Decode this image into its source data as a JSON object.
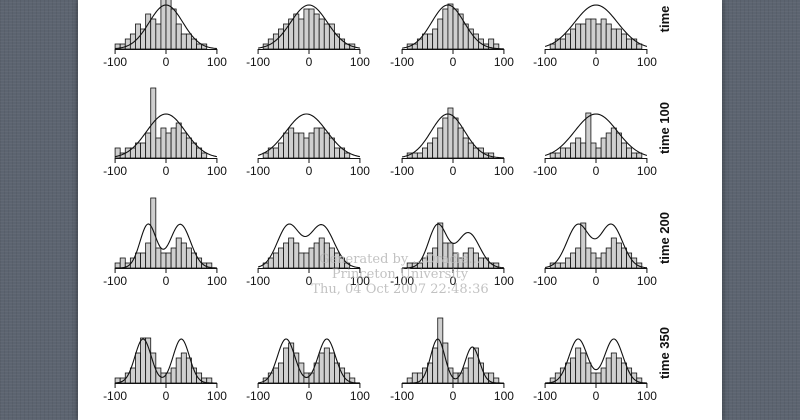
{
  "chart_data": {
    "type": "histogram-grid",
    "title": "",
    "xlabel": "",
    "ylabel": "",
    "xlim": [
      -110,
      110
    ],
    "x_ticks": [
      -100,
      0,
      100
    ],
    "x_tick_labels": [
      "-100",
      "0",
      "100"
    ],
    "bin_width": 10,
    "bin_starts": [
      -100,
      -90,
      -80,
      -70,
      -60,
      -50,
      -40,
      -30,
      -20,
      -10,
      0,
      10,
      20,
      30,
      40,
      50,
      60,
      70,
      80,
      90
    ],
    "rows": [
      {
        "label": "time",
        "panels": [
          {
            "counts": [
              1,
              1,
              2,
              3,
              5,
              4,
              7,
              6,
              5,
              13,
              11,
              8,
              5,
              3,
              3,
              2,
              1,
              1,
              0,
              0
            ],
            "curve": [
              {
                "mean": 0,
                "sd": 33,
                "weight": 1
              }
            ]
          },
          {
            "counts": [
              0,
              1,
              2,
              3,
              4,
              5,
              6,
              7,
              6,
              8,
              8,
              7,
              6,
              5,
              5,
              3,
              2,
              1,
              1,
              0
            ],
            "curve": [
              {
                "mean": 0,
                "sd": 36,
                "weight": 1
              }
            ]
          },
          {
            "counts": [
              0,
              1,
              1,
              2,
              3,
              3,
              4,
              6,
              8,
              9,
              8,
              7,
              5,
              4,
              3,
              2,
              1,
              2,
              1,
              0
            ],
            "curve": [
              {
                "mean": -10,
                "sd": 32,
                "weight": 1
              }
            ]
          },
          {
            "counts": [
              0,
              1,
              2,
              2,
              3,
              4,
              5,
              5,
              6,
              6,
              5,
              6,
              5,
              4,
              4,
              3,
              2,
              2,
              1,
              0
            ],
            "curve": [
              {
                "mean": 0,
                "sd": 42,
                "weight": 1
              }
            ]
          }
        ]
      },
      {
        "label": "time 100",
        "panels": [
          {
            "counts": [
              2,
              1,
              2,
              2,
              3,
              3,
              5,
              14,
              4,
              6,
              5,
              6,
              7,
              5,
              4,
              3,
              2,
              1,
              0,
              0
            ],
            "curve": [
              {
                "mean": 0,
                "sd": 38,
                "weight": 1
              }
            ]
          },
          {
            "counts": [
              0,
              1,
              2,
              2,
              3,
              5,
              6,
              5,
              5,
              4,
              5,
              6,
              6,
              5,
              4,
              2,
              2,
              1,
              0,
              0
            ],
            "curve": [
              {
                "mean": -5,
                "sd": 40,
                "weight": 1
              }
            ]
          },
          {
            "counts": [
              0,
              1,
              1,
              1,
              2,
              3,
              4,
              6,
              8,
              10,
              8,
              6,
              4,
              3,
              2,
              2,
              1,
              1,
              0,
              0
            ],
            "curve": [
              {
                "mean": -10,
                "sd": 33,
                "weight": 1
              }
            ]
          },
          {
            "counts": [
              0,
              1,
              1,
              2,
              2,
              3,
              4,
              3,
              9,
              3,
              2,
              4,
              5,
              6,
              5,
              3,
              2,
              1,
              1,
              0
            ],
            "curve": [
              {
                "mean": 0,
                "sd": 42,
                "weight": 1
              }
            ]
          }
        ]
      },
      {
        "label": "time 200",
        "panels": [
          {
            "counts": [
              1,
              2,
              1,
              2,
              3,
              3,
              5,
              14,
              4,
              3,
              3,
              4,
              6,
              5,
              4,
              3,
              2,
              1,
              1,
              0
            ],
            "curve": [
              {
                "mean": -35,
                "sd": 16,
                "weight": 0.5
              },
              {
                "mean": 28,
                "sd": 20,
                "weight": 0.5
              }
            ]
          },
          {
            "counts": [
              0,
              1,
              2,
              3,
              4,
              5,
              6,
              5,
              3,
              3,
              4,
              5,
              6,
              5,
              4,
              3,
              2,
              1,
              0,
              0
            ],
            "curve": [
              {
                "mean": -40,
                "sd": 22,
                "weight": 0.5
              },
              {
                "mean": 25,
                "sd": 24,
                "weight": 0.5
              }
            ]
          },
          {
            "counts": [
              0,
              1,
              1,
              1,
              2,
              3,
              4,
              9,
              5,
              5,
              3,
              2,
              3,
              4,
              3,
              2,
              2,
              1,
              1,
              0
            ],
            "curve": [
              {
                "mean": -30,
                "sd": 18,
                "weight": 0.55
              },
              {
                "mean": 30,
                "sd": 22,
                "weight": 0.45
              }
            ]
          },
          {
            "counts": [
              0,
              1,
              1,
              1,
              2,
              3,
              4,
              9,
              4,
              3,
              2,
              3,
              4,
              6,
              5,
              4,
              3,
              2,
              1,
              0
            ],
            "curve": [
              {
                "mean": -35,
                "sd": 22,
                "weight": 0.5
              },
              {
                "mean": 30,
                "sd": 22,
                "weight": 0.5
              }
            ]
          }
        ]
      },
      {
        "label": "time 350",
        "panels": [
          {
            "counts": [
              1,
              1,
              2,
              3,
              6,
              9,
              9,
              6,
              3,
              2,
              2,
              3,
              5,
              6,
              5,
              3,
              2,
              1,
              1,
              0
            ],
            "curve": [
              {
                "mean": -45,
                "sd": 16,
                "weight": 0.5
              },
              {
                "mean": 30,
                "sd": 16,
                "weight": 0.5
              }
            ]
          },
          {
            "counts": [
              0,
              1,
              2,
              3,
              4,
              7,
              8,
              6,
              4,
              2,
              2,
              4,
              6,
              7,
              6,
              4,
              3,
              2,
              1,
              0
            ],
            "curve": [
              {
                "mean": -45,
                "sd": 17,
                "weight": 0.5
              },
              {
                "mean": 35,
                "sd": 17,
                "weight": 0.5
              }
            ]
          },
          {
            "counts": [
              0,
              1,
              2,
              2,
              3,
              4,
              7,
              13,
              8,
              3,
              2,
              2,
              3,
              5,
              7,
              4,
              2,
              2,
              1,
              0
            ],
            "curve": [
              {
                "mean": -30,
                "sd": 14,
                "weight": 0.55
              },
              {
                "mean": 38,
                "sd": 14,
                "weight": 0.45
              }
            ]
          },
          {
            "counts": [
              0,
              1,
              2,
              3,
              4,
              5,
              7,
              6,
              4,
              2,
              2,
              3,
              5,
              6,
              5,
              4,
              3,
              2,
              1,
              0
            ],
            "curve": [
              {
                "mean": -35,
                "sd": 18,
                "weight": 0.5
              },
              {
                "mean": 35,
                "sd": 18,
                "weight": 0.5
              }
            ]
          }
        ]
      }
    ]
  },
  "watermark": {
    "line1": "Generated by ...Oracle...",
    "line2": "Princeton University",
    "line3": "Thu, 04 Oct 2007 22:48:36"
  }
}
